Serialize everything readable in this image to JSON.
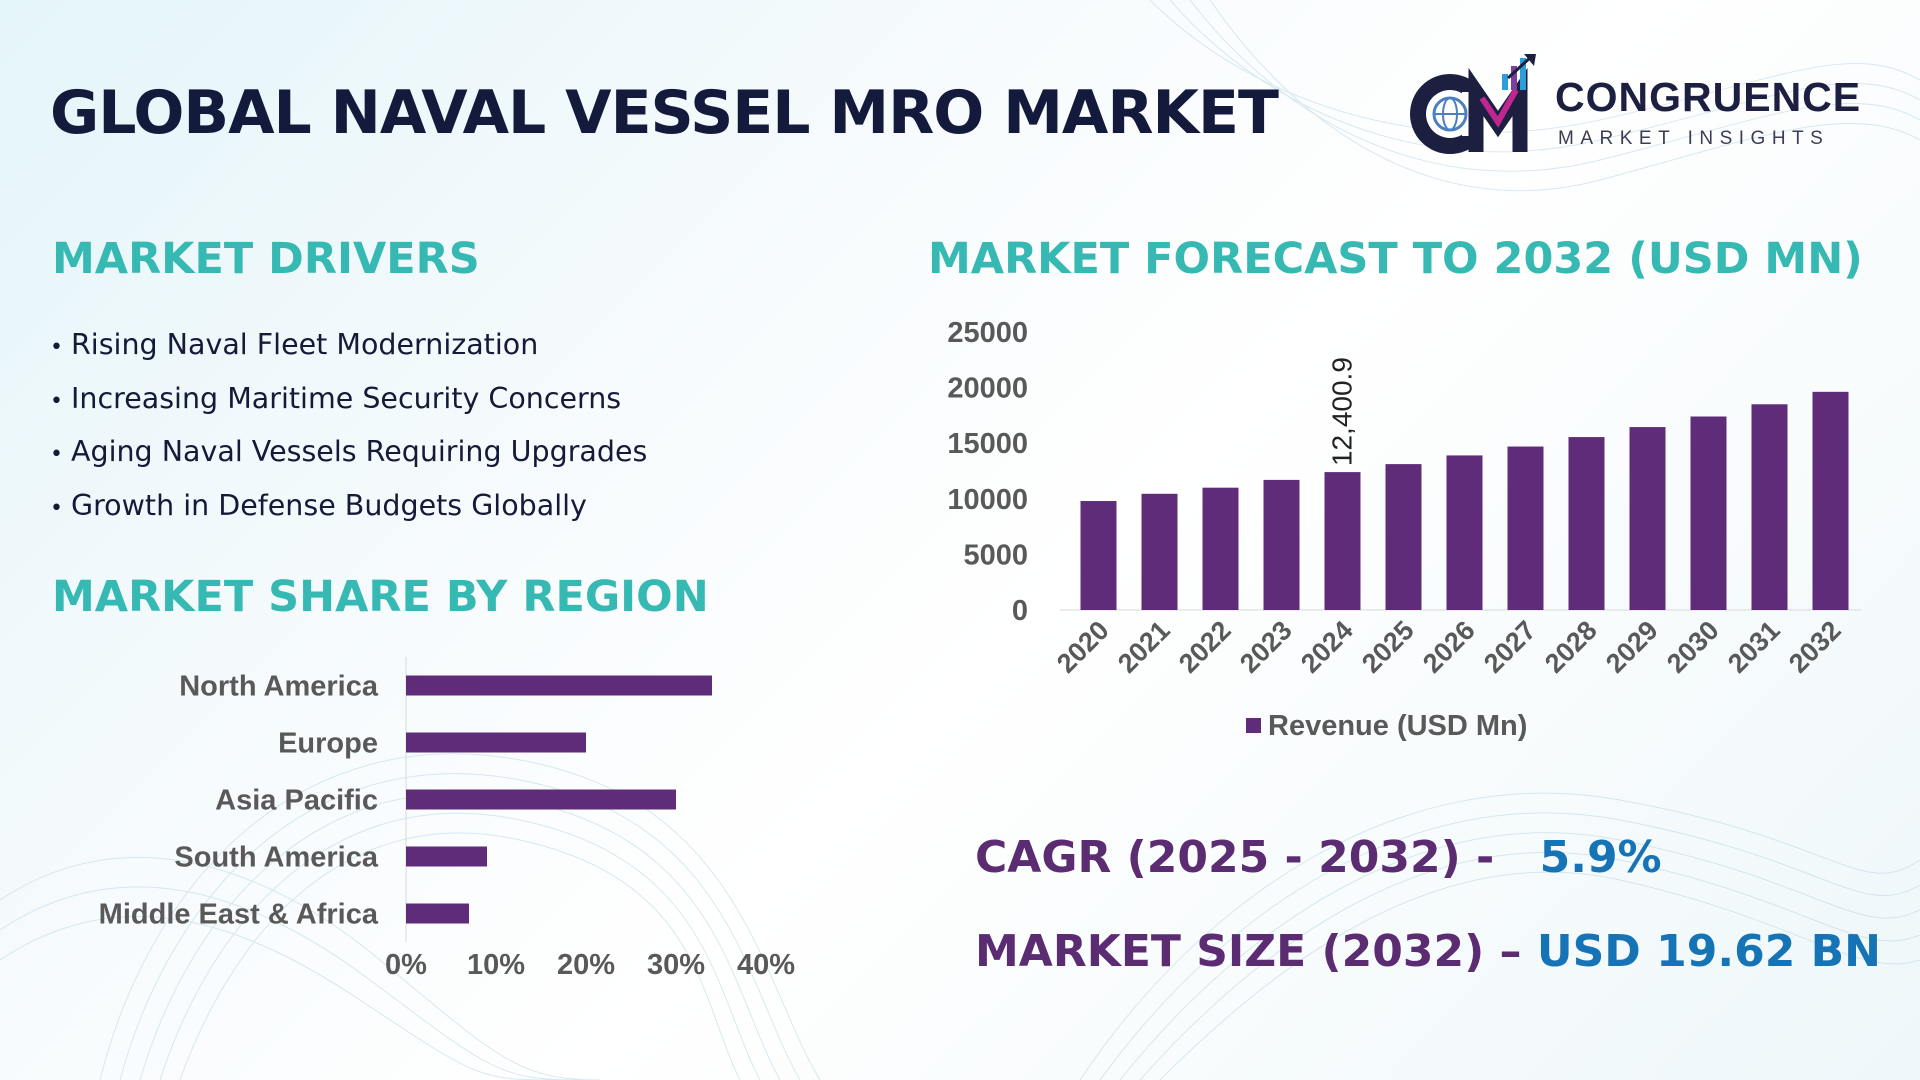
{
  "header": {
    "title": "GLOBAL NAVAL VESSEL MRO MARKET"
  },
  "logo": {
    "name": "CONGRUENCE",
    "tagline": "MARKET INSIGHTS",
    "mark": "CMI-monogram-icon"
  },
  "drivers": {
    "heading": "MARKET DRIVERS",
    "items": [
      "Rising Naval Fleet Modernization",
      "Increasing Maritime Security Concerns",
      "Aging Naval Vessels Requiring Upgrades",
      "Growth in Defense Budgets Globally"
    ]
  },
  "region": {
    "heading": "MARKET SHARE BY REGION"
  },
  "forecast": {
    "heading": "MARKET FORECAST TO 2032 (USD MN)"
  },
  "stats": {
    "cagr_label": "CAGR (2025 - 2032) -",
    "cagr_value": "5.9%",
    "size_label": "MARKET SIZE (2032) –",
    "size_value": "USD 19.62 BN"
  },
  "colors": {
    "bar": "#5e2c78",
    "heading": "#36b9b2",
    "stat_label": "#5b2c72",
    "stat_value": "#1673b5",
    "title": "#141a3c"
  },
  "chart_data": [
    {
      "type": "bar",
      "orientation": "horizontal",
      "categories": [
        "North America",
        "Europe",
        "Asia Pacific",
        "South America",
        "Middle East & Africa"
      ],
      "values": [
        34,
        20,
        30,
        9,
        7
      ],
      "xlim": [
        0,
        40
      ],
      "ticks": [
        0,
        10,
        20,
        30,
        40
      ],
      "tick_labels": [
        "0%",
        "10%",
        "20%",
        "30%",
        "40%"
      ],
      "unit": "%",
      "grid": false,
      "legend": "none"
    },
    {
      "type": "bar",
      "categories": [
        "2020",
        "2021",
        "2022",
        "2023",
        "2024",
        "2025",
        "2026",
        "2027",
        "2028",
        "2029",
        "2030",
        "2031",
        "2032"
      ],
      "series": [
        {
          "name": "Revenue (USD Mn)",
          "values": [
            9800,
            10450,
            11000,
            11700,
            12400.9,
            13120,
            13900,
            14700,
            15550,
            16450,
            17400,
            18500,
            19620
          ]
        }
      ],
      "ylim": [
        0,
        25000
      ],
      "yticks": [
        0,
        5000,
        10000,
        15000,
        20000,
        25000
      ],
      "data_labels": [
        {
          "category": "2024",
          "text": "12,400.9"
        }
      ],
      "grid": false,
      "legend": "bottom"
    }
  ]
}
